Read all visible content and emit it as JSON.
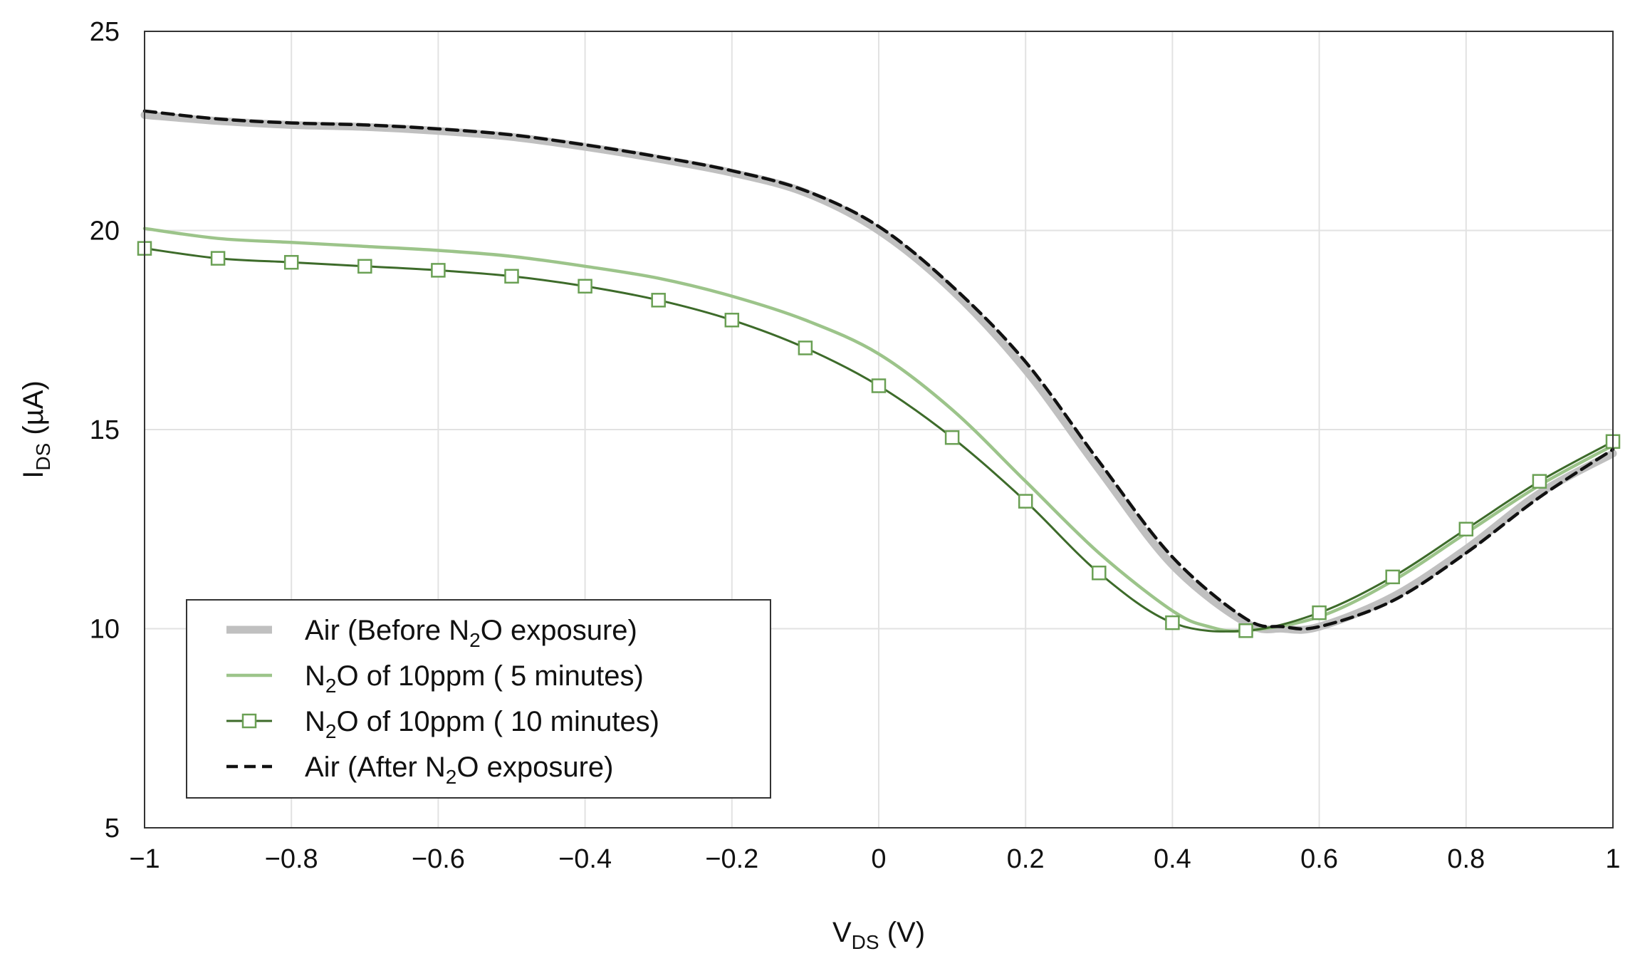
{
  "chart_data": {
    "type": "line",
    "title": "",
    "xlabel": {
      "main": "V",
      "sub": "DS",
      "unit": " (V)"
    },
    "ylabel": {
      "main": "I",
      "sub": "DS",
      "unit": " (µA)"
    },
    "xlim": [
      -1,
      1
    ],
    "ylim": [
      5,
      25
    ],
    "xticks": [
      -1,
      -0.8,
      -0.6,
      -0.4,
      -0.2,
      0,
      0.2,
      0.4,
      0.6,
      0.8,
      1
    ],
    "xtick_labels": [
      "−1",
      "−0.8",
      "−0.6",
      "−0.4",
      "−0.2",
      "0",
      "0.2",
      "0.4",
      "0.6",
      "0.8",
      "1"
    ],
    "yticks": [
      5,
      10,
      15,
      20,
      25
    ],
    "ytick_labels": [
      "5",
      "10",
      "15",
      "20",
      "25"
    ],
    "grid": true,
    "legend_position": "bottom-left",
    "series": [
      {
        "name": "Air (Before N2O exposure)",
        "label_parts": [
          "Air   (Before N",
          "2",
          "O exposure)"
        ],
        "color": "#c0c0c0",
        "style": "thick",
        "x": [
          -1,
          -0.9,
          -0.8,
          -0.7,
          -0.6,
          -0.5,
          -0.4,
          -0.3,
          -0.2,
          -0.1,
          0,
          0.1,
          0.2,
          0.3,
          0.4,
          0.5,
          0.55,
          0.6,
          0.7,
          0.8,
          0.9,
          1
        ],
        "y": [
          22.9,
          22.75,
          22.65,
          22.6,
          22.5,
          22.35,
          22.1,
          21.8,
          21.45,
          20.95,
          20.0,
          18.5,
          16.5,
          14.0,
          11.6,
          10.15,
          10.0,
          10.05,
          10.8,
          12.0,
          13.4,
          14.4
        ]
      },
      {
        "name": "N2O of 10ppm ( 5 minutes)",
        "label_parts": [
          "N",
          "2",
          "O of 10ppm (   5 minutes)"
        ],
        "color": "#9cc48a",
        "style": "solid",
        "x": [
          -1,
          -0.9,
          -0.8,
          -0.7,
          -0.6,
          -0.5,
          -0.4,
          -0.3,
          -0.2,
          -0.1,
          0,
          0.1,
          0.2,
          0.3,
          0.4,
          0.45,
          0.5,
          0.6,
          0.7,
          0.8,
          0.9,
          1
        ],
        "y": [
          20.05,
          19.8,
          19.7,
          19.6,
          19.5,
          19.35,
          19.1,
          18.8,
          18.35,
          17.75,
          16.9,
          15.5,
          13.7,
          11.9,
          10.45,
          10.05,
          9.95,
          10.3,
          11.2,
          12.4,
          13.6,
          14.6
        ]
      },
      {
        "name": "N2O of 10ppm ( 10 minutes)",
        "label_parts": [
          "N",
          "2",
          "O of 10ppm ( 10 minutes)"
        ],
        "color": "#3d6b2a",
        "style": "solid-marker",
        "x": [
          -1,
          -0.9,
          -0.8,
          -0.7,
          -0.6,
          -0.5,
          -0.4,
          -0.3,
          -0.2,
          -0.1,
          0,
          0.1,
          0.2,
          0.3,
          0.4,
          0.5,
          0.6,
          0.7,
          0.8,
          0.9,
          1
        ],
        "y": [
          19.55,
          19.3,
          19.2,
          19.1,
          19.0,
          18.85,
          18.6,
          18.25,
          17.75,
          17.05,
          16.1,
          14.8,
          13.2,
          11.4,
          10.15,
          9.95,
          10.4,
          11.3,
          12.5,
          13.7,
          14.7
        ]
      },
      {
        "name": "Air (After N2O exposure)",
        "label_parts": [
          "Air   (After N",
          "2",
          "O exposure)"
        ],
        "color": "#111111",
        "style": "dashed",
        "x": [
          -1,
          -0.9,
          -0.8,
          -0.7,
          -0.6,
          -0.5,
          -0.4,
          -0.3,
          -0.2,
          -0.1,
          0,
          0.1,
          0.2,
          0.3,
          0.4,
          0.5,
          0.55,
          0.6,
          0.7,
          0.8,
          0.9,
          1
        ],
        "y": [
          23.0,
          22.8,
          22.7,
          22.65,
          22.55,
          22.4,
          22.15,
          21.85,
          21.5,
          21.0,
          20.1,
          18.6,
          16.7,
          14.2,
          11.8,
          10.25,
          10.05,
          10.05,
          10.7,
          11.9,
          13.3,
          14.5
        ]
      }
    ]
  }
}
